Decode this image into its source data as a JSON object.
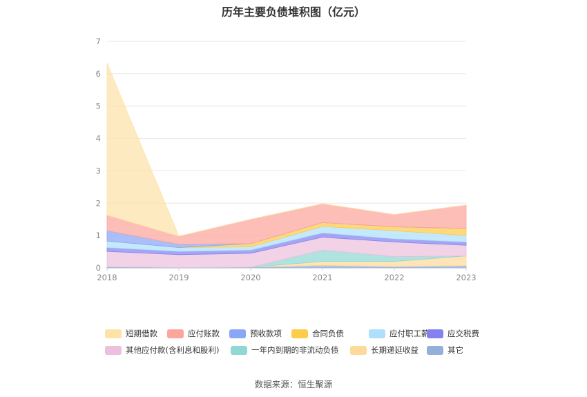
{
  "chart_data": {
    "type": "area",
    "stacked": true,
    "title": "历年主要负债堆积图（亿元）",
    "x": [
      "2018",
      "2019",
      "2020",
      "2021",
      "2022",
      "2023"
    ],
    "ylim": [
      0,
      7
    ],
    "yticks": [
      0,
      1,
      2,
      3,
      4,
      5,
      6,
      7
    ],
    "grid": true,
    "legend_position": "bottom",
    "series": [
      {
        "name": "其它",
        "color": "#94afd9",
        "values": [
          0.03,
          0.01,
          0.02,
          0.08,
          0.04,
          0.07
        ]
      },
      {
        "name": "长期递延收益",
        "color": "#fdd99a",
        "values": [
          0.0,
          0.0,
          0.0,
          0.12,
          0.16,
          0.3
        ]
      },
      {
        "name": "一年内到期的非流动负债",
        "color": "#8fd8d4",
        "values": [
          0.0,
          0.0,
          0.0,
          0.35,
          0.15,
          0.0
        ]
      },
      {
        "name": "其他应付款(含利息和股利)",
        "color": "#ebc0dd",
        "values": [
          0.48,
          0.4,
          0.43,
          0.4,
          0.45,
          0.33
        ]
      },
      {
        "name": "应交税费",
        "color": "#8382f0",
        "values": [
          0.12,
          0.1,
          0.1,
          0.13,
          0.1,
          0.1
        ]
      },
      {
        "name": "应付职工薪酬",
        "color": "#aee0fb",
        "values": [
          0.2,
          0.12,
          0.1,
          0.2,
          0.25,
          0.2
        ]
      },
      {
        "name": "合同负债",
        "color": "#fecb4a",
        "values": [
          0.0,
          0.0,
          0.1,
          0.12,
          0.12,
          0.22
        ]
      },
      {
        "name": "预收款项",
        "color": "#89a6f8",
        "values": [
          0.32,
          0.1,
          0.0,
          0.0,
          0.0,
          0.0
        ]
      },
      {
        "name": "应付账款",
        "color": "#fba59b",
        "values": [
          0.48,
          0.25,
          0.75,
          0.58,
          0.38,
          0.72
        ]
      },
      {
        "name": "短期借款",
        "color": "#fee2a8",
        "values": [
          4.7,
          0.0,
          0.0,
          0.0,
          0.0,
          0.0
        ]
      }
    ],
    "legend_order": [
      "短期借款",
      "应付账款",
      "预收款项",
      "合同负债",
      "应付职工薪酬",
      "应交税费",
      "其他应付款(含利息和股利)",
      "一年内到期的非流动负债",
      "长期递延收益",
      "其它"
    ]
  },
  "source_text": "数据来源：恒生聚源"
}
